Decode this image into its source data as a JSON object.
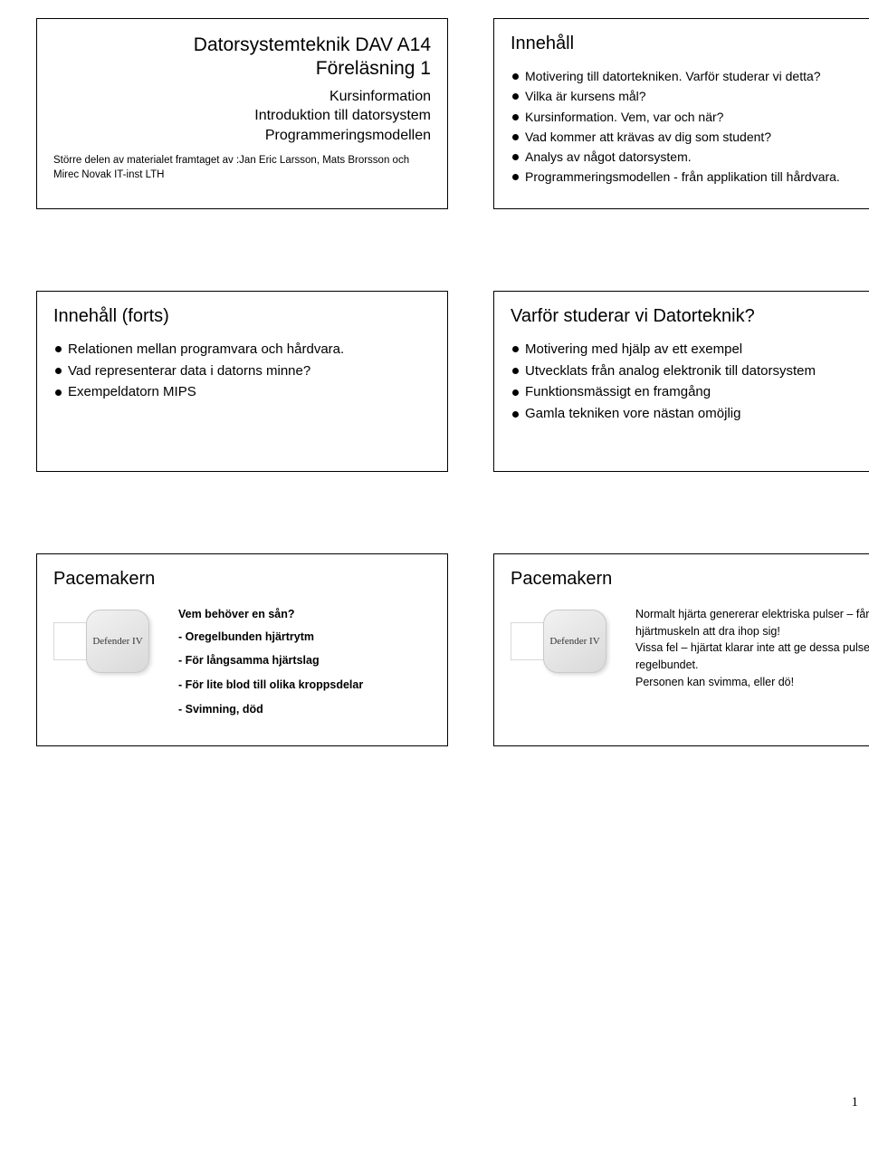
{
  "page_number": "1",
  "slides": {
    "s1": {
      "title_line1": "Datorsystemteknik DAV A14",
      "title_line2": "Föreläsning 1",
      "sub1": "Kursinformation",
      "sub2": "Introduktion till datorsystem",
      "sub3": "Programmeringsmodellen",
      "credit": "Större delen av materialet framtaget av :Jan Eric Larsson, Mats Brorsson och Mirec Novak IT-inst LTH"
    },
    "s2": {
      "title": "Innehåll",
      "bullets": [
        "Motivering till datortekniken. Varför studerar vi detta?",
        "Vilka är kursens mål?",
        "Kursinformation. Vem, var och när?",
        "Vad kommer att krävas av dig som student?",
        "Analys av något datorsystem.",
        "Programmeringsmodellen - från applikation till hårdvara."
      ]
    },
    "s3": {
      "title": "Innehåll (forts)",
      "bullets": [
        "Relationen mellan programvara och hårdvara.",
        "Vad representerar data i datorns minne?",
        "Exempeldatorn MIPS"
      ]
    },
    "s4": {
      "title": "Varför studerar vi Datorteknik?",
      "bullets": [
        "Motivering med hjälp av ett exempel",
        "Utvecklats från analog elektronik till datorsystem",
        "Funktionsmässigt en framgång",
        "Gamla tekniken vore nästan omöjlig"
      ]
    },
    "s5": {
      "title": "Pacemakern",
      "question": "Vem behöver en sån?",
      "items": [
        "- Oregelbunden hjärtrytm",
        "- För långsamma hjärtslag",
        "- För lite blod till olika kroppsdelar",
        "- Svimning, död"
      ],
      "device_label": "Defender IV"
    },
    "s6": {
      "title": "Pacemakern",
      "para1": "Normalt hjärta genererar elektriska pulser – får hjärtmuskeln att dra ihop sig!",
      "para2": "Vissa fel – hjärtat klarar inte att ge dessa pulser regelbundet.",
      "para3": "Personen kan svimma, eller dö!",
      "device_label": "Defender IV"
    }
  }
}
